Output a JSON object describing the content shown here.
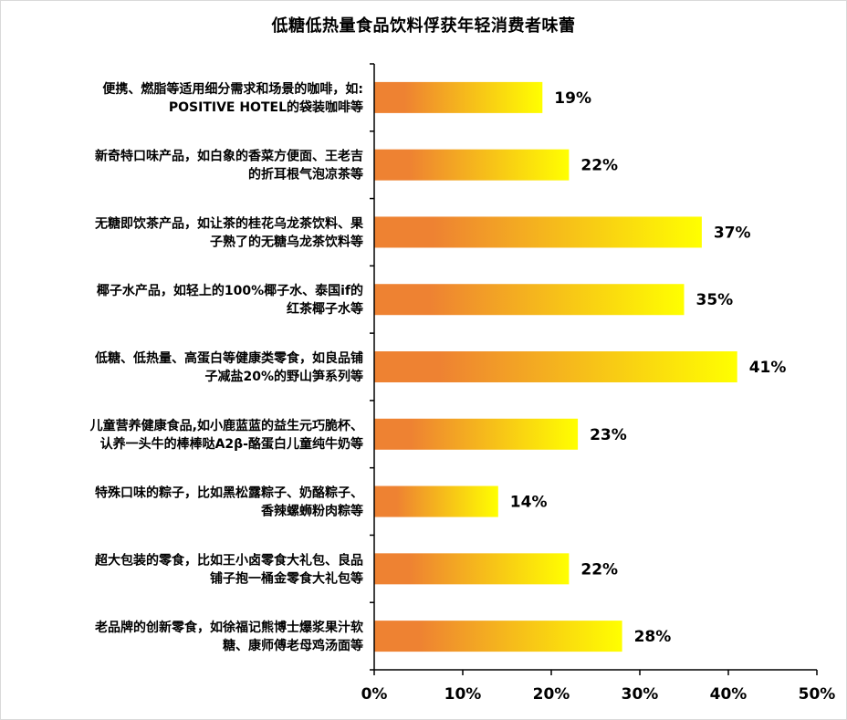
{
  "chart_data": {
    "type": "bar",
    "orientation": "horizontal",
    "title": "低糖低热量食品饮料俘获年轻消费者味蕾",
    "categories": [
      [
        "便携、燃脂等适用细分需求和场景的咖啡，如:",
        "POSITIVE HOTEL的袋装咖啡等"
      ],
      [
        "新奇特口味产品，如白象的香菜方便面、王老吉",
        "的折耳根气泡凉茶等"
      ],
      [
        "无糖即饮茶产品，如让茶的桂花乌龙茶饮料、果",
        "子熟了的无糖乌龙茶饮料等"
      ],
      [
        "椰子水产品，如轻上的100%椰子水、泰国if的",
        "红茶椰子水等"
      ],
      [
        "低糖、低热量、高蛋白等健康类零食，如良品铺",
        "子减盐20%的野山笋系列等"
      ],
      [
        "儿童营养健康食品,如小鹿蓝蓝的益生元巧脆杯、",
        "认养一头牛的棒棒哒A2β-酪蛋白儿童纯牛奶等"
      ],
      [
        "特殊口味的粽子，比如黑松露粽子、奶酪粽子、",
        "香辣螺蛳粉肉粽等"
      ],
      [
        "超大包装的零食，比如王小卤零食大礼包、良品",
        "铺子抱一桶金零食大礼包等"
      ],
      [
        "老品牌的创新零食，如徐福记熊博士爆浆果汁软",
        "糖、康师傅老母鸡汤面等"
      ]
    ],
    "values": [
      0.19,
      0.22,
      0.37,
      0.35,
      0.41,
      0.23,
      0.14,
      0.22,
      0.28
    ],
    "value_labels": [
      "19%",
      "22%",
      "37%",
      "35%",
      "41%",
      "23%",
      "14%",
      "22%",
      "28%"
    ],
    "xlim": [
      0,
      0.5
    ],
    "xticks": [
      0,
      0.1,
      0.2,
      0.3,
      0.4,
      0.5
    ],
    "xtick_labels": [
      "0%",
      "10%",
      "20%",
      "30%",
      "40%",
      "50%"
    ],
    "xlabel": "",
    "ylabel": "",
    "grid": false,
    "legend": "none",
    "colors": {
      "bar_start": "#EE8232",
      "bar_end": "#FFFF00",
      "axis": "#000000",
      "text": "#000000"
    }
  }
}
